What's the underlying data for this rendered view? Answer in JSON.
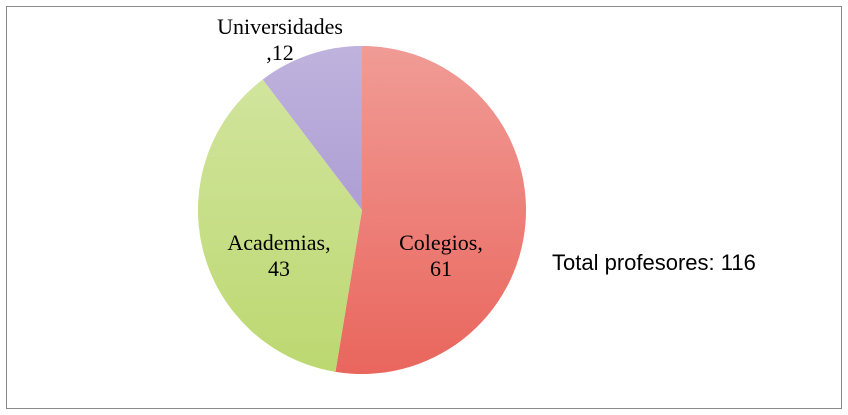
{
  "chart_data": {
    "type": "pie",
    "categories": [
      "Colegios",
      "Academias",
      "Universidades"
    ],
    "values": [
      61,
      43,
      12
    ],
    "value_labels": [
      "Colegios,\n61",
      "Academias,\n43",
      "Universidades\n,12"
    ],
    "colors": [
      "#e9665d",
      "#bcd870",
      "#9d8acb"
    ],
    "annotation": "Total profesores: 116"
  }
}
